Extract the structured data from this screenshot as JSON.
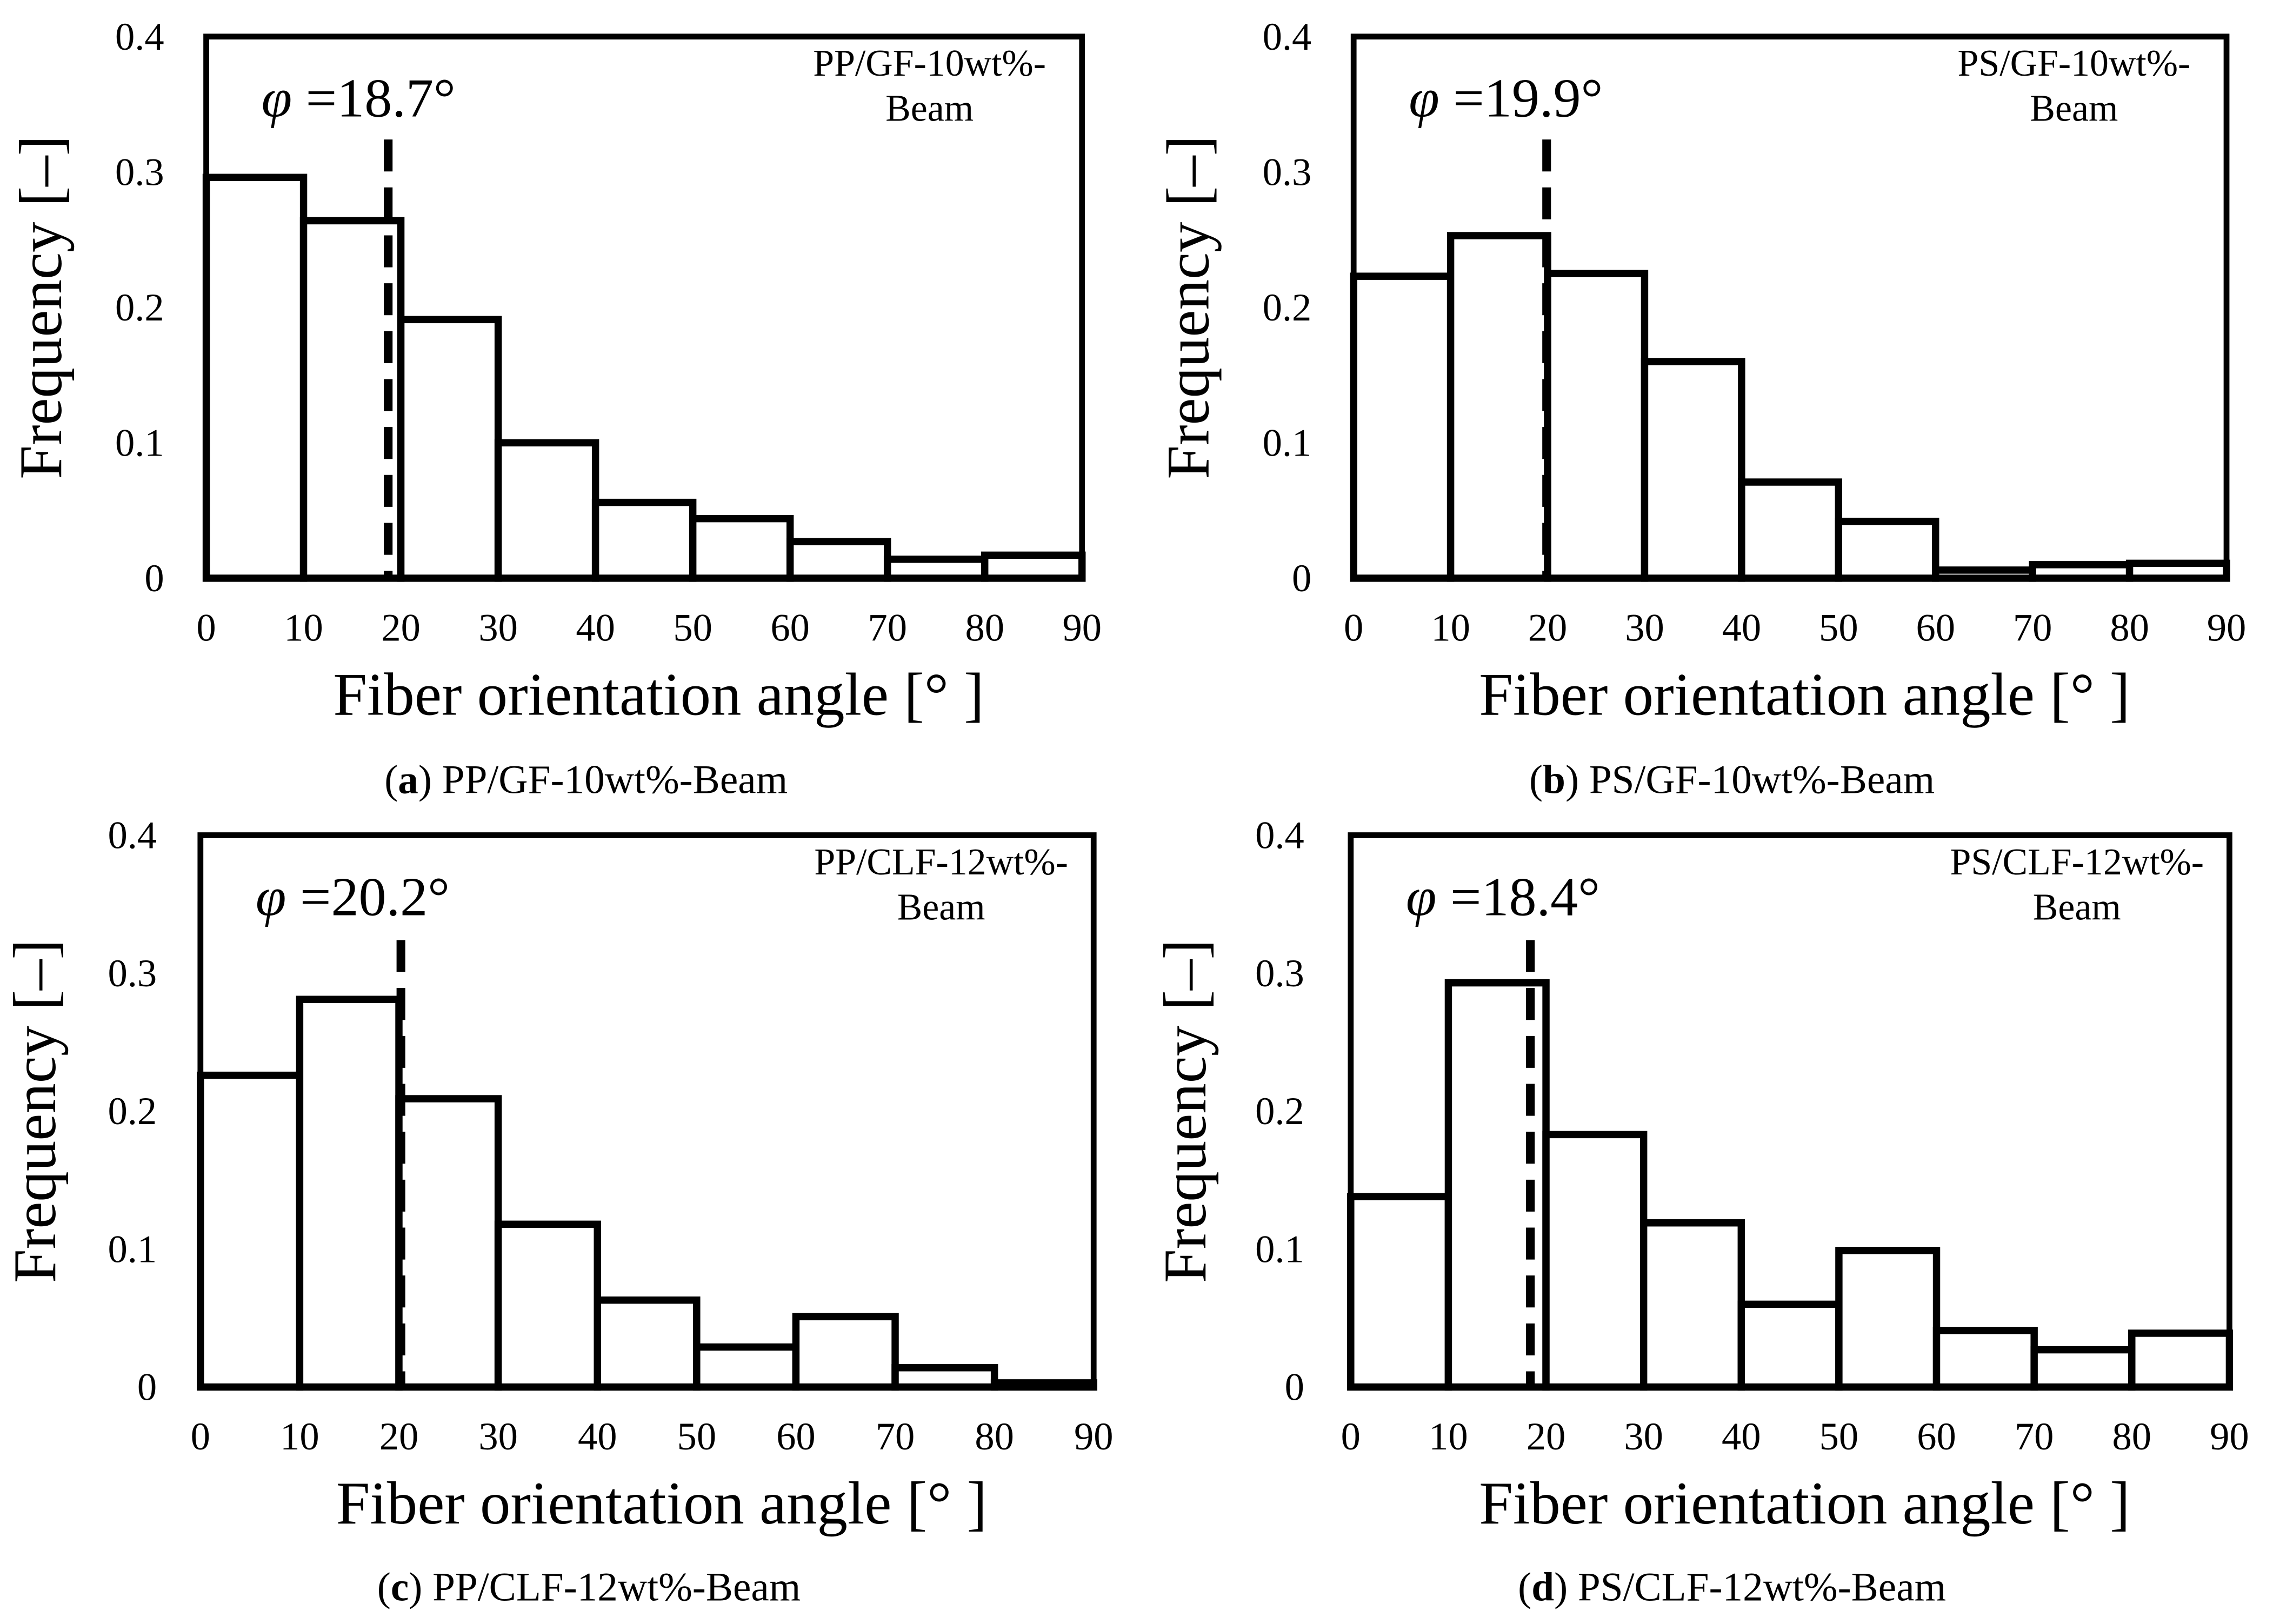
{
  "chart_data": [
    {
      "type": "bar",
      "panel": "a",
      "caption_letter": "a",
      "caption": " PP/GF-10wt%-Beam",
      "annotation_lines": [
        "PP/GF-10wt%-",
        "Beam"
      ],
      "mean_label": "φ =18.7°",
      "mean_symbol": "φ",
      "mean_text": " =18.7°",
      "mean_angle": 18.7,
      "xlabel": "Fiber orientation angle [°  ]",
      "ylabel": "Frequency [–]",
      "x_ticks": [
        "0",
        "10",
        "20",
        "30",
        "40",
        "50",
        "60",
        "70",
        "80",
        "90"
      ],
      "y_ticks": [
        "0",
        "0.1",
        "0.2",
        "0.3",
        "0.4"
      ],
      "xlim": [
        0,
        90
      ],
      "ylim": [
        0,
        0.4
      ],
      "bin_edges": [
        0,
        10,
        20,
        30,
        40,
        50,
        60,
        70,
        80,
        90
      ],
      "values": [
        0.296,
        0.264,
        0.191,
        0.1,
        0.056,
        0.044,
        0.027,
        0.014,
        0.017
      ]
    },
    {
      "type": "bar",
      "panel": "b",
      "caption_letter": "b",
      "caption": " PS/GF-10wt%-Beam",
      "annotation_lines": [
        "PS/GF-10wt%-",
        "Beam"
      ],
      "mean_label": "φ =19.9°",
      "mean_symbol": "φ",
      "mean_text": " =19.9°",
      "mean_angle": 19.9,
      "xlabel": "Fiber orientation angle [°  ]",
      "ylabel": "Frequency [–]",
      "x_ticks": [
        "0",
        "10",
        "20",
        "30",
        "40",
        "50",
        "60",
        "70",
        "80",
        "90"
      ],
      "y_ticks": [
        "0",
        "0.1",
        "0.2",
        "0.3",
        "0.4"
      ],
      "xlim": [
        0,
        90
      ],
      "ylim": [
        0,
        0.4
      ],
      "bin_edges": [
        0,
        10,
        20,
        30,
        40,
        50,
        60,
        70,
        80,
        90
      ],
      "values": [
        0.223,
        0.253,
        0.225,
        0.16,
        0.071,
        0.042,
        0.006,
        0.01,
        0.011
      ]
    },
    {
      "type": "bar",
      "panel": "c",
      "caption_letter": "c",
      "caption": " PP/CLF-12wt%-Beam",
      "annotation_lines": [
        "PP/CLF-12wt%-",
        "Beam"
      ],
      "mean_label": "φ =20.2°",
      "mean_symbol": "φ",
      "mean_text": " =20.2°",
      "mean_angle": 20.2,
      "xlabel": "Fiber orientation angle [°  ]",
      "ylabel": "Frequency [–]",
      "x_ticks": [
        "0",
        "10",
        "20",
        "30",
        "40",
        "50",
        "60",
        "70",
        "80",
        "90"
      ],
      "y_ticks": [
        "0",
        "0.1",
        "0.2",
        "0.3",
        "0.4"
      ],
      "xlim": [
        0,
        90
      ],
      "ylim": [
        0,
        0.4
      ],
      "bin_edges": [
        0,
        10,
        20,
        30,
        40,
        50,
        60,
        70,
        80,
        90
      ],
      "values": [
        0.226,
        0.281,
        0.209,
        0.118,
        0.063,
        0.029,
        0.051,
        0.014,
        0.003
      ]
    },
    {
      "type": "bar",
      "panel": "d",
      "caption_letter": "d",
      "caption": " PS/CLF-12wt%-Beam",
      "annotation_lines": [
        "PS/CLF-12wt%-",
        "Beam"
      ],
      "mean_label": "φ =18.4°",
      "mean_symbol": "φ",
      "mean_text": " =18.4°",
      "mean_angle": 18.4,
      "xlabel": "Fiber orientation angle [°  ]",
      "ylabel": "Frequency [–]",
      "x_ticks": [
        "0",
        "10",
        "20",
        "30",
        "40",
        "50",
        "60",
        "70",
        "80",
        "90"
      ],
      "y_ticks": [
        "0",
        "0.1",
        "0.2",
        "0.3",
        "0.4"
      ],
      "xlim": [
        0,
        90
      ],
      "ylim": [
        0,
        0.4
      ],
      "bin_edges": [
        0,
        10,
        20,
        30,
        40,
        50,
        60,
        70,
        80,
        90
      ],
      "values": [
        0.138,
        0.293,
        0.183,
        0.119,
        0.06,
        0.099,
        0.041,
        0.027,
        0.039
      ]
    }
  ]
}
